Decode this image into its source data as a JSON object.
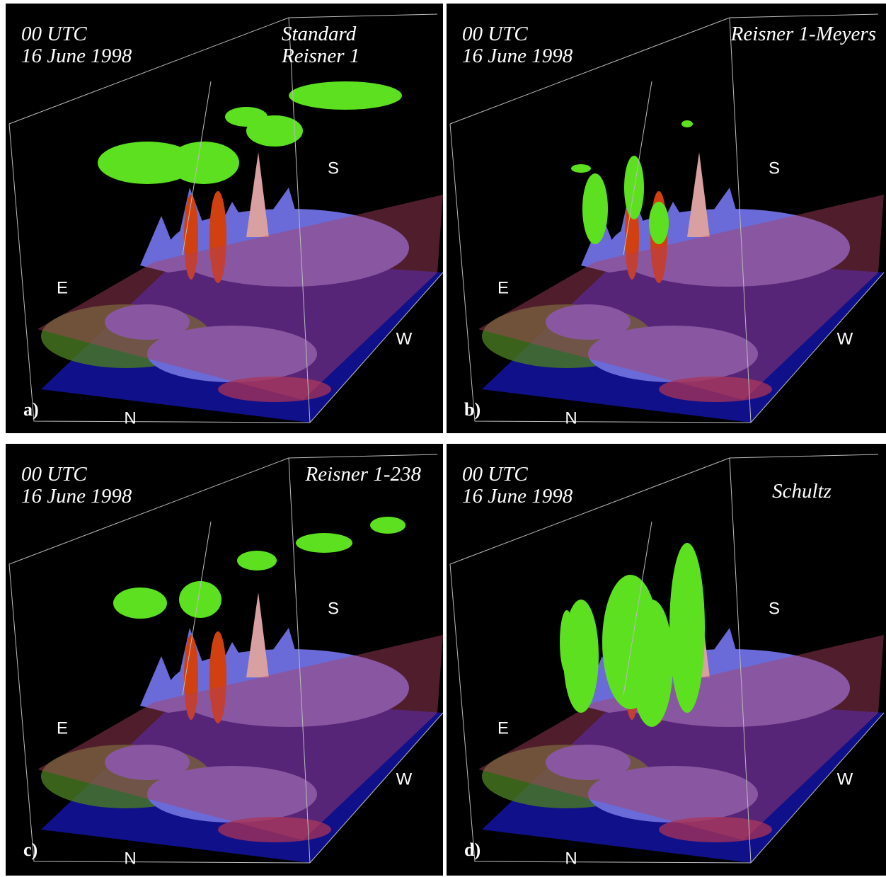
{
  "panels": [
    {
      "label": "a)",
      "time": "00 UTC",
      "date": "16 June 1998",
      "scheme_lines": [
        "Standard",
        "Reisner 1"
      ],
      "compass": [
        "E",
        "S",
        "W",
        "N"
      ]
    },
    {
      "label": "b)",
      "time": "00 UTC",
      "date": "16 June 1998",
      "scheme_lines": [
        "Reisner 1-Meyers"
      ],
      "compass": [
        "E",
        "S",
        "W",
        "N"
      ]
    },
    {
      "label": "c)",
      "time": "00 UTC",
      "date": "16 June 1998",
      "scheme_lines": [
        "Reisner 1-238"
      ],
      "compass": [
        "E",
        "S",
        "W",
        "N"
      ]
    },
    {
      "label": "d)",
      "time": "00 UTC",
      "date": "16 June 1998",
      "scheme_lines": [
        "Schultz"
      ],
      "compass": [
        "E",
        "S",
        "W",
        "N"
      ]
    }
  ]
}
